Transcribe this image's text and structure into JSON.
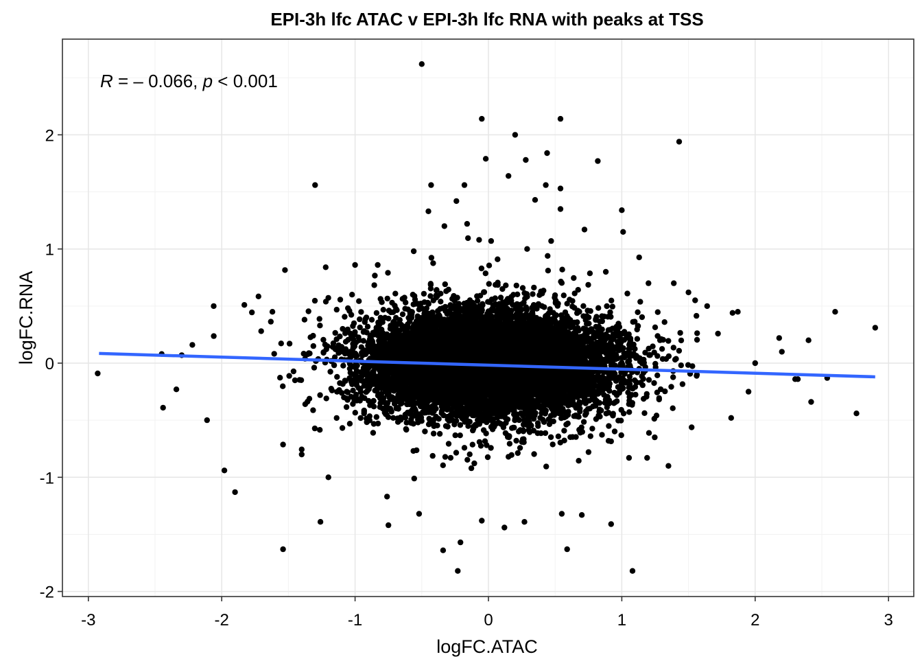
{
  "chart_data": {
    "type": "scatter",
    "title": "EPI-3h lfc ATAC v EPI-3h lfc RNA with peaks at TSS",
    "xlabel": "logFC.ATAC",
    "ylabel": "logFC.RNA",
    "xlim": [
      -3.1,
      3.2
    ],
    "ylim": [
      -2.05,
      2.8
    ],
    "xticks": [
      -3,
      -2,
      -1,
      0,
      1,
      2,
      3
    ],
    "yticks": [
      -2,
      -1,
      0,
      1,
      2
    ],
    "xtick_labels": [
      "-3",
      "-2",
      "-1",
      "0",
      "1",
      "2",
      "3"
    ],
    "ytick_labels": [
      "-2",
      "-1",
      "0",
      "1",
      "2"
    ],
    "grid": true,
    "annotation": {
      "r_symbol": "R",
      "r_text": " = – 0.066, ",
      "p_symbol": "p",
      "p_text": " < 0.001"
    },
    "regression": {
      "color": "#3366FF",
      "x": [
        -2.92,
        2.9
      ],
      "y": [
        0.085,
        -0.12
      ]
    },
    "point_color": "#000000",
    "dense_core": {
      "description_points": "bulk of ~thousands of points centered near (0, 0)",
      "x_sd": 0.45,
      "y_sd": 0.22,
      "count": 9000
    },
    "points": [
      [
        -0.5,
        2.62
      ],
      [
        -0.05,
        2.14
      ],
      [
        0.2,
        2.0
      ],
      [
        0.54,
        2.14
      ],
      [
        1.43,
        1.94
      ],
      [
        -0.02,
        1.79
      ],
      [
        0.28,
        1.78
      ],
      [
        0.82,
        1.77
      ],
      [
        0.44,
        1.84
      ],
      [
        -1.3,
        1.56
      ],
      [
        -0.43,
        1.56
      ],
      [
        -0.18,
        1.56
      ],
      [
        0.15,
        1.64
      ],
      [
        0.43,
        1.56
      ],
      [
        0.54,
        1.53
      ],
      [
        -0.45,
        1.33
      ],
      [
        -0.24,
        1.42
      ],
      [
        0.35,
        1.43
      ],
      [
        0.54,
        1.35
      ],
      [
        1.0,
        1.34
      ],
      [
        1.01,
        1.15
      ],
      [
        -0.33,
        1.2
      ],
      [
        -0.16,
        1.22
      ],
      [
        0.72,
        1.17
      ],
      [
        -2.93,
        -0.09
      ],
      [
        -2.45,
        0.08
      ],
      [
        -2.44,
        -0.39
      ],
      [
        -2.34,
        -0.23
      ],
      [
        -2.3,
        0.07
      ],
      [
        -2.22,
        0.16
      ],
      [
        -2.06,
        0.5
      ],
      [
        -1.98,
        -0.94
      ],
      [
        -1.9,
        -1.13
      ],
      [
        -2.11,
        -0.5
      ],
      [
        -1.83,
        0.51
      ],
      [
        -1.54,
        -1.63
      ],
      [
        -1.26,
        -1.39
      ],
      [
        -0.75,
        -1.42
      ],
      [
        -0.34,
        -1.64
      ],
      [
        -0.23,
        -1.82
      ],
      [
        -0.21,
        -1.57
      ],
      [
        0.59,
        -1.63
      ],
      [
        1.08,
        -1.82
      ],
      [
        0.92,
        -1.41
      ],
      [
        1.35,
        -0.9
      ],
      [
        1.19,
        -0.83
      ],
      [
        -0.52,
        -1.32
      ],
      [
        0.27,
        -1.39
      ],
      [
        0.12,
        -1.44
      ],
      [
        1.82,
        -0.48
      ],
      [
        1.83,
        0.44
      ],
      [
        1.87,
        0.45
      ],
      [
        2.0,
        0.0
      ],
      [
        2.18,
        0.22
      ],
      [
        2.32,
        -0.14
      ],
      [
        2.4,
        0.2
      ],
      [
        2.42,
        -0.34
      ],
      [
        2.54,
        -0.13
      ],
      [
        2.6,
        0.45
      ],
      [
        2.76,
        -0.44
      ],
      [
        2.9,
        0.31
      ],
      [
        2.2,
        0.1
      ],
      [
        2.3,
        -0.14
      ],
      [
        1.95,
        -0.25
      ],
      [
        1.64,
        0.5
      ],
      [
        1.5,
        0.62
      ],
      [
        1.39,
        0.7
      ],
      [
        1.55,
        0.55
      ],
      [
        1.2,
        0.7
      ],
      [
        0.88,
        0.8
      ],
      [
        -1.22,
        0.84
      ],
      [
        -1.0,
        0.86
      ],
      [
        -0.83,
        0.86
      ],
      [
        -0.56,
        0.98
      ],
      [
        -0.07,
        1.08
      ],
      [
        0.02,
        1.07
      ],
      [
        0.29,
        1.0
      ],
      [
        0.47,
        1.07
      ],
      [
        -1.62,
        0.45
      ],
      [
        -1.4,
        -0.8
      ],
      [
        -1.2,
        -1.0
      ],
      [
        -0.05,
        -1.38
      ],
      [
        0.7,
        -1.33
      ],
      [
        0.55,
        -1.32
      ]
    ]
  }
}
